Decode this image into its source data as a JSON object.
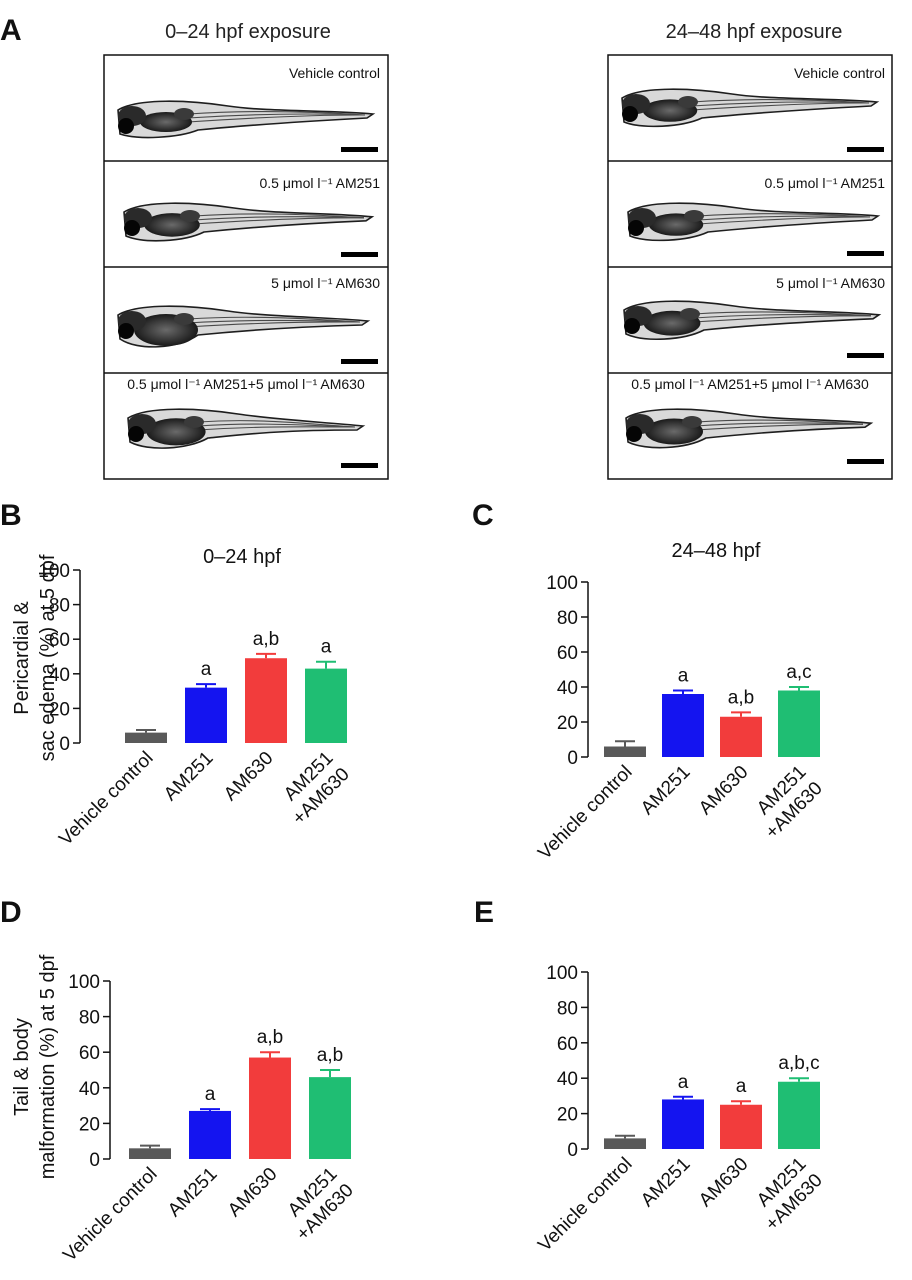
{
  "figure": {
    "panel_a": {
      "letter": "A",
      "columns": [
        {
          "title": "0–24 hpf exposure",
          "images": [
            {
              "label": "Vehicle control",
              "body_width": 255,
              "edema": 0.0,
              "curl": 0.0
            },
            {
              "label": "0.5 μmol l⁻¹ AM251",
              "body_width": 248,
              "edema": 0.3,
              "curl": 0.02
            },
            {
              "label": "5 μmol l⁻¹ AM630",
              "body_width": 250,
              "edema": 1.0,
              "curl": 0.05
            },
            {
              "label": "0.5 μmol l⁻¹ AM251+5 μmol l⁻¹ AM630",
              "body_width": 235,
              "edema": 0.6,
              "curl": 0.1
            }
          ]
        },
        {
          "title": "24–48 hpf exposure",
          "images": [
            {
              "label": "Vehicle control",
              "body_width": 255,
              "edema": 0.2,
              "curl": 0.0
            },
            {
              "label": "0.5 μmol l⁻¹ AM251",
              "body_width": 250,
              "edema": 0.2,
              "curl": 0.0
            },
            {
              "label": "5 μmol l⁻¹ AM630",
              "body_width": 255,
              "edema": 0.4,
              "curl": 0.02
            },
            {
              "label": "0.5 μmol l⁻¹ AM251+5 μmol l⁻¹ AM630",
              "body_width": 245,
              "edema": 0.5,
              "curl": 0.03
            }
          ]
        }
      ]
    },
    "colors": {
      "vehicle": "#595959",
      "am251": "#1414f0",
      "am630": "#f23c3c",
      "combo": "#1fbe73"
    }
  },
  "chart_data": [
    {
      "panel": "B",
      "type": "bar",
      "title": "0–24 hpf",
      "ylabel": "Pericardial & sac edema (%) at 5 dpf",
      "ylabel_lines": [
        "Pericardial &",
        "sac edema (%) at 5 dpf"
      ],
      "categories": [
        "Vehicle control",
        "AM251",
        "AM630",
        "AM251 +AM630"
      ],
      "category_lines": [
        [
          "Vehicle control"
        ],
        [
          "AM251"
        ],
        [
          "AM630"
        ],
        [
          "AM251",
          "+AM630"
        ]
      ],
      "values": [
        6,
        32,
        49,
        43
      ],
      "errors": [
        1.5,
        2,
        2.5,
        4
      ],
      "sig": [
        "",
        "a",
        "a,b",
        "a"
      ],
      "ylim": [
        0,
        100
      ],
      "yticks": [
        "0",
        "20",
        "40",
        "60",
        "80",
        "100"
      ]
    },
    {
      "panel": "C",
      "type": "bar",
      "title": "24–48 hpf",
      "ylabel": "",
      "ylabel_lines": [],
      "categories": [
        "Vehicle control",
        "AM251",
        "AM630",
        "AM251 +AM630"
      ],
      "category_lines": [
        [
          "Vehicle control"
        ],
        [
          "AM251"
        ],
        [
          "AM630"
        ],
        [
          "AM251",
          "+AM630"
        ]
      ],
      "values": [
        6,
        36,
        23,
        38
      ],
      "errors": [
        3,
        2,
        2.5,
        2
      ],
      "sig": [
        "",
        "a",
        "a,b",
        "a,c"
      ],
      "ylim": [
        0,
        100
      ],
      "yticks": [
        "0",
        "20",
        "40",
        "60",
        "80",
        "100"
      ]
    },
    {
      "panel": "D",
      "type": "bar",
      "title": "",
      "ylabel": "Tail & body malformation (%) at 5 dpf",
      "ylabel_lines": [
        "Tail & body",
        "malformation (%) at 5 dpf"
      ],
      "categories": [
        "Vehicle control",
        "AM251",
        "AM630",
        "AM251 +AM630"
      ],
      "category_lines": [
        [
          "Vehicle control"
        ],
        [
          "AM251"
        ],
        [
          "AM630"
        ],
        [
          "AM251",
          "+AM630"
        ]
      ],
      "values": [
        6,
        27,
        57,
        46
      ],
      "errors": [
        1.5,
        1,
        3,
        4
      ],
      "sig": [
        "",
        "a",
        "a,b",
        "a,b"
      ],
      "ylim": [
        0,
        100
      ],
      "yticks": [
        "0",
        "20",
        "40",
        "60",
        "80",
        "100"
      ]
    },
    {
      "panel": "E",
      "type": "bar",
      "title": "",
      "ylabel": "",
      "ylabel_lines": [],
      "categories": [
        "Vehicle control",
        "AM251",
        "AM630",
        "AM251 +AM630"
      ],
      "category_lines": [
        [
          "Vehicle control"
        ],
        [
          "AM251"
        ],
        [
          "AM630"
        ],
        [
          "AM251",
          "+AM630"
        ]
      ],
      "values": [
        6,
        28,
        25,
        38
      ],
      "errors": [
        1.5,
        1.5,
        2,
        2
      ],
      "sig": [
        "",
        "a",
        "a",
        "a,b,c"
      ],
      "ylim": [
        0,
        100
      ],
      "yticks": [
        "0",
        "20",
        "40",
        "60",
        "80",
        "100"
      ]
    }
  ]
}
